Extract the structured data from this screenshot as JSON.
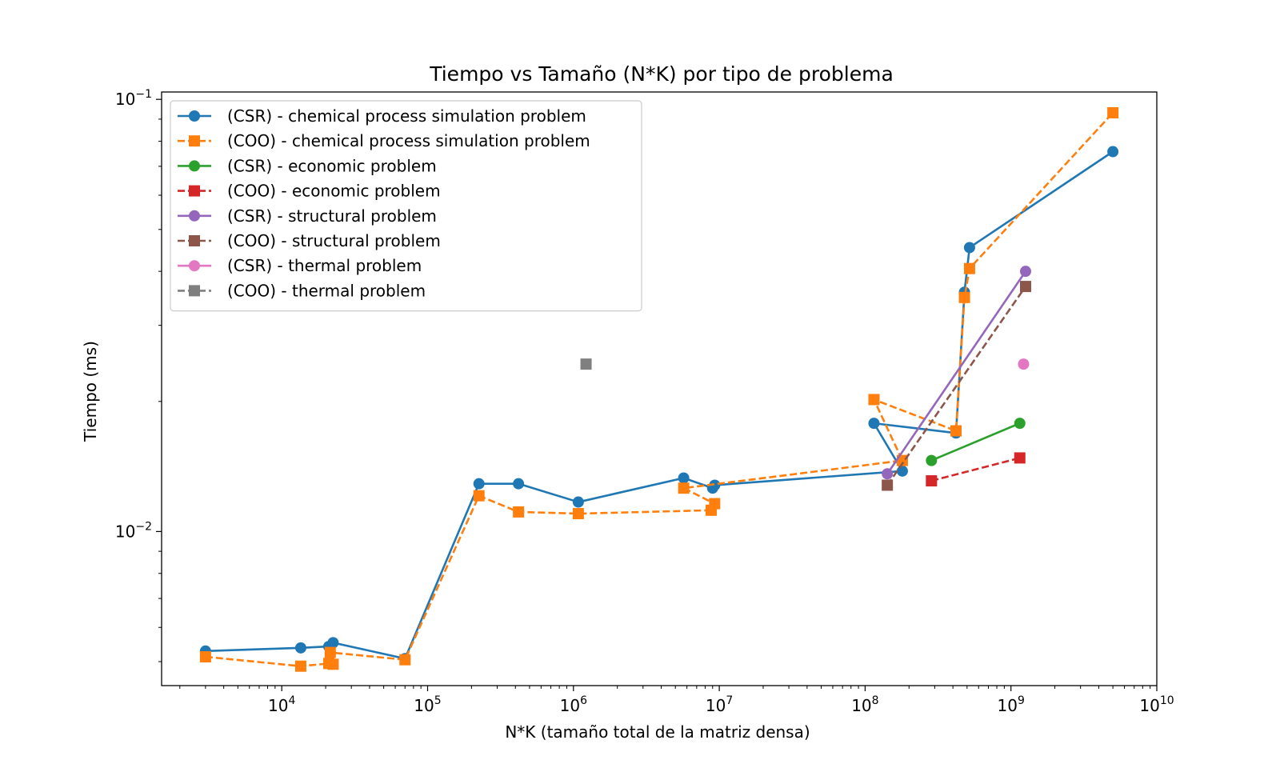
{
  "chart_data": {
    "type": "line",
    "title": "Tiempo vs Tamaño (N*K) por tipo de problema",
    "xlabel": "N*K (tamaño total de la matriz densa)",
    "ylabel": "Tiempo (ms)",
    "xscale": "log",
    "yscale": "log",
    "xlim": [
      1500,
      10000000000
    ],
    "ylim": [
      0.0044,
      0.104
    ],
    "x_ticks": [
      {
        "value": 10000,
        "base": "10",
        "exp": "4"
      },
      {
        "value": 100000,
        "base": "10",
        "exp": "5"
      },
      {
        "value": 1000000,
        "base": "10",
        "exp": "6"
      },
      {
        "value": 10000000,
        "base": "10",
        "exp": "7"
      },
      {
        "value": 100000000,
        "base": "10",
        "exp": "8"
      },
      {
        "value": 1000000000,
        "base": "10",
        "exp": "9"
      },
      {
        "value": 10000000000,
        "base": "10",
        "exp": "10"
      }
    ],
    "y_ticks": [
      {
        "value": 0.01,
        "base": "10",
        "exp": "−2"
      },
      {
        "value": 0.1,
        "base": "10",
        "exp": "−1"
      }
    ],
    "grid": false,
    "legend_position": "upper-left",
    "series": [
      {
        "name": "(CSR) - chemical process simulation problem",
        "color": "#1f77b4",
        "linestyle": "solid",
        "marker": "circle",
        "x": [
          3000,
          13500,
          21000,
          22500,
          70000,
          225000,
          420000,
          1080000,
          5700000,
          9000000,
          9300000,
          180000000,
          115000000,
          420000000,
          480000000,
          520000000,
          5000000000
        ],
        "y": [
          0.00529,
          0.00538,
          0.00542,
          0.00553,
          0.00508,
          0.0129,
          0.0129,
          0.0117,
          0.0133,
          0.0126,
          0.0128,
          0.0138,
          0.0178,
          0.0169,
          0.0358,
          0.0454,
          0.0757
        ]
      },
      {
        "name": "(COO) - chemical process simulation problem",
        "color": "#ff7f0e",
        "linestyle": "dashed",
        "marker": "square",
        "x": [
          3000,
          13500,
          21000,
          22500,
          21500,
          70000,
          225000,
          420000,
          1080000,
          8800000,
          9300000,
          5700000,
          180000000,
          115000000,
          420000000,
          480000000,
          520000000,
          5000000000
        ],
        "y": [
          0.00513,
          0.00488,
          0.00495,
          0.00493,
          0.00525,
          0.00505,
          0.0121,
          0.0111,
          0.011,
          0.0112,
          0.0116,
          0.0126,
          0.0146,
          0.0202,
          0.0171,
          0.0348,
          0.0406,
          0.0931
        ]
      },
      {
        "name": "(CSR) - economic problem",
        "color": "#2ca02c",
        "linestyle": "solid",
        "marker": "circle",
        "x": [
          285000000,
          1150000000
        ],
        "y": [
          0.0146,
          0.0178
        ]
      },
      {
        "name": "(COO) - economic problem",
        "color": "#d62728",
        "linestyle": "dashed",
        "marker": "square",
        "x": [
          285000000,
          1150000000
        ],
        "y": [
          0.0131,
          0.0148
        ]
      },
      {
        "name": "(CSR) - structural problem",
        "color": "#9467bd",
        "linestyle": "solid",
        "marker": "circle",
        "x": [
          142000000,
          1260000000
        ],
        "y": [
          0.0136,
          0.04
        ]
      },
      {
        "name": "(COO) - structural problem",
        "color": "#8c564b",
        "linestyle": "dashed",
        "marker": "square",
        "x": [
          142000000,
          1260000000
        ],
        "y": [
          0.0128,
          0.0369
        ]
      },
      {
        "name": "(CSR) - thermal problem",
        "color": "#e377c2",
        "linestyle": "solid",
        "marker": "circle",
        "x": [
          1220000000
        ],
        "y": [
          0.0244
        ]
      },
      {
        "name": "(COO) - thermal problem",
        "color": "#7f7f7f",
        "linestyle": "dashed",
        "marker": "square",
        "x": [
          1220000
        ],
        "y": [
          0.0244
        ]
      }
    ]
  }
}
